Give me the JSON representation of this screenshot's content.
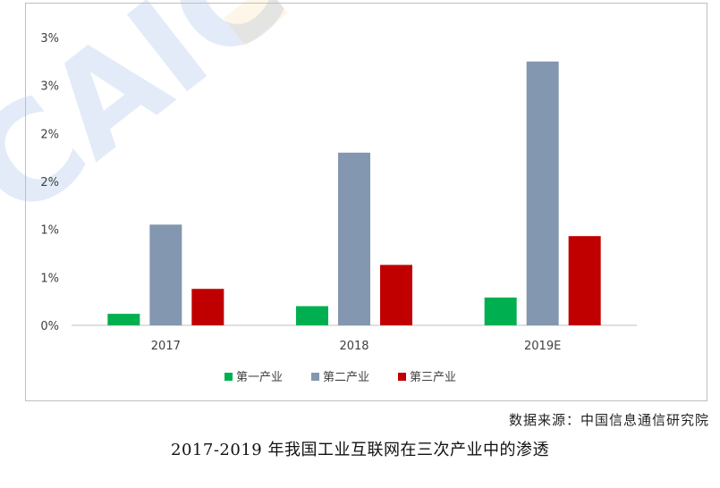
{
  "chart_data": {
    "type": "bar",
    "categories": [
      "2017",
      "2018",
      "2019E"
    ],
    "series": [
      {
        "name": "第一产业",
        "color": "#00b050",
        "values": [
          0.12,
          0.2,
          0.29
        ]
      },
      {
        "name": "第二产业",
        "color": "#8497b0",
        "values": [
          1.05,
          1.8,
          2.75
        ]
      },
      {
        "name": "第三产业",
        "color": "#c00000",
        "values": [
          0.38,
          0.63,
          0.93
        ]
      }
    ],
    "y_ticks": [
      {
        "value": 0,
        "label": "0%"
      },
      {
        "value": 0.5,
        "label": "1%"
      },
      {
        "value": 1.0,
        "label": "1%"
      },
      {
        "value": 1.5,
        "label": "2%"
      },
      {
        "value": 2.0,
        "label": "2%"
      },
      {
        "value": 2.5,
        "label": "3%"
      },
      {
        "value": 3.0,
        "label": "3%"
      }
    ],
    "ylim": [
      0,
      3
    ],
    "grid": false,
    "legend_position": "bottom"
  },
  "source_text": "数据来源：中国信息通信研究院",
  "caption": "2017-2019 年我国工业互联网在三次产业中的渗透"
}
